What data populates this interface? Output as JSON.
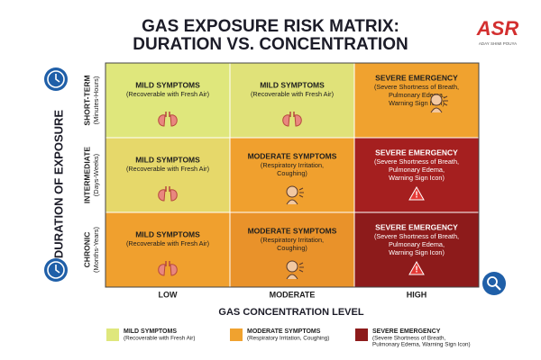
{
  "header": {
    "title_lines": [
      "GAS EXPOSURE RISK MATRIX:",
      "DURATION VS. CONCENTRATION"
    ],
    "logo": "ASR",
    "logo_caption": "ADAY SHIMI POUYA"
  },
  "y_axis_title": "DURATION OF EXPOSURE",
  "x_axis_title": "GAS CONCENTRATION LEVEL",
  "rows": [
    {
      "label": "SHORT-TERM",
      "sublabel": "(Minutes-Hours)"
    },
    {
      "label": "INTERMEDIATE",
      "sublabel": "(Days-Weeks)"
    },
    {
      "label": "CHRONIC",
      "sublabel": "(Months-Years)"
    }
  ],
  "columns": [
    "LOW",
    "MODERATE",
    "HIGH"
  ],
  "cells": [
    [
      {
        "title": "MILD SYMPTOMS",
        "lines": [
          "(Recoverable with Fresh Air)"
        ]
      },
      {
        "title": "MILD SYMPTOMS",
        "lines": [
          "(Recoverable with Fresh Air)"
        ]
      },
      {
        "title": "SEVERE EMERGENCY",
        "lines": [
          "(Severe Shortness of Breath,",
          "Pulmonary Edema,",
          "Warning Sign Icon)"
        ]
      }
    ],
    [
      {
        "title": "MILD SYMPTOMS",
        "lines": [
          "(Recoverable with Fresh Air)"
        ]
      },
      {
        "title": "MODERATE SYMPTOMS",
        "lines": [
          "(Respiratory Irritation,",
          "Coughing)"
        ]
      },
      {
        "title": "SEVERE EMERGENCY",
        "lines": [
          "(Severe Shortness of Breath,",
          "Pulmonary Edema,",
          "Warning Sign Icon)"
        ]
      }
    ],
    [
      {
        "title": "MILD SYMPTOMS",
        "lines": [
          "(Recoverable with Fresh Air)"
        ]
      },
      {
        "title": "MODERATE SYMPTOMS",
        "lines": [
          "(Respiratory Irritation,",
          "Coughing)"
        ]
      },
      {
        "title": "SEVERE EMERGENCY",
        "lines": [
          "(Severe Shortness of Breath,",
          "Pulmonary Edema,",
          "Warning Sign Icon)"
        ]
      }
    ]
  ],
  "legend": [
    {
      "title": "MILD SYMPTOMS",
      "lines": [
        "(Recoverable with Fresh Air)"
      ]
    },
    {
      "title": "MODERATE SYMPTOMS",
      "lines": [
        "(Respiratory Irritation, Coughing)"
      ]
    },
    {
      "title": "SEVERE EMERGENCY",
      "lines": [
        "(Severe Shortness of Breath,",
        "Pulmonary Edema, Warning Sign Icon)"
      ]
    }
  ]
}
